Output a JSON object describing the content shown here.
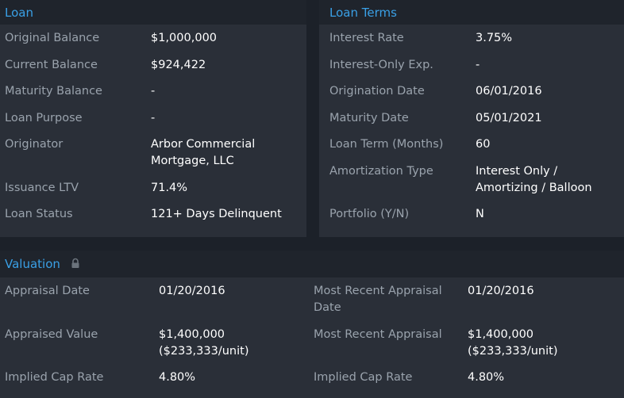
{
  "loan": {
    "title": "Loan",
    "rows": [
      {
        "label": "Original Balance",
        "value": "$1,000,000"
      },
      {
        "label": "Current Balance",
        "value": "$924,422"
      },
      {
        "label": "Maturity Balance",
        "value": "-"
      },
      {
        "label": "Loan Purpose",
        "value": "-"
      },
      {
        "label": "Originator",
        "value_line1": "Arbor Commercial",
        "value_line2": "Mortgage, LLC"
      },
      {
        "label": "Issuance LTV",
        "value": "71.4%"
      },
      {
        "label": "Loan Status",
        "value": "121+ Days Delinquent"
      }
    ]
  },
  "loan_terms": {
    "title": "Loan Terms",
    "rows": [
      {
        "label": "Interest Rate",
        "value": "3.75%"
      },
      {
        "label": "Interest-Only Exp.",
        "value": "-"
      },
      {
        "label": "Origination Date",
        "value": "06/01/2016"
      },
      {
        "label": "Maturity Date",
        "value": "05/01/2021"
      },
      {
        "label": "Loan Term (Months)",
        "value": "60"
      },
      {
        "label": "Amortization Type",
        "value_line1": "Interest Only /",
        "value_line2": "Amortizing / Balloon"
      },
      {
        "label": "Portfolio (Y/N)",
        "value": "N"
      }
    ]
  },
  "valuation": {
    "title": "Valuation",
    "lock_icon": "lock-icon",
    "left": [
      {
        "label": "Appraisal Date",
        "value": "01/20/2016"
      },
      {
        "label": "Appraised Value",
        "value_line1": "$1,400,000",
        "value_line2": "($233,333/unit)"
      },
      {
        "label": "Implied Cap Rate",
        "value": "4.80%"
      }
    ],
    "right": [
      {
        "label_line1": "Most Recent Appraisal",
        "label_line2": "Date",
        "value": "01/20/2016"
      },
      {
        "label": "Most Recent Appraisal",
        "value_line1": "$1,400,000",
        "value_line2": "($233,333/unit)"
      },
      {
        "label": "Implied Cap Rate",
        "value": "4.80%"
      }
    ]
  },
  "colors": {
    "accent": "#3aa0e6",
    "label": "#9aa3ad",
    "value": "#ffffff",
    "panel": "#2a2f38",
    "header": "#1f242c"
  }
}
